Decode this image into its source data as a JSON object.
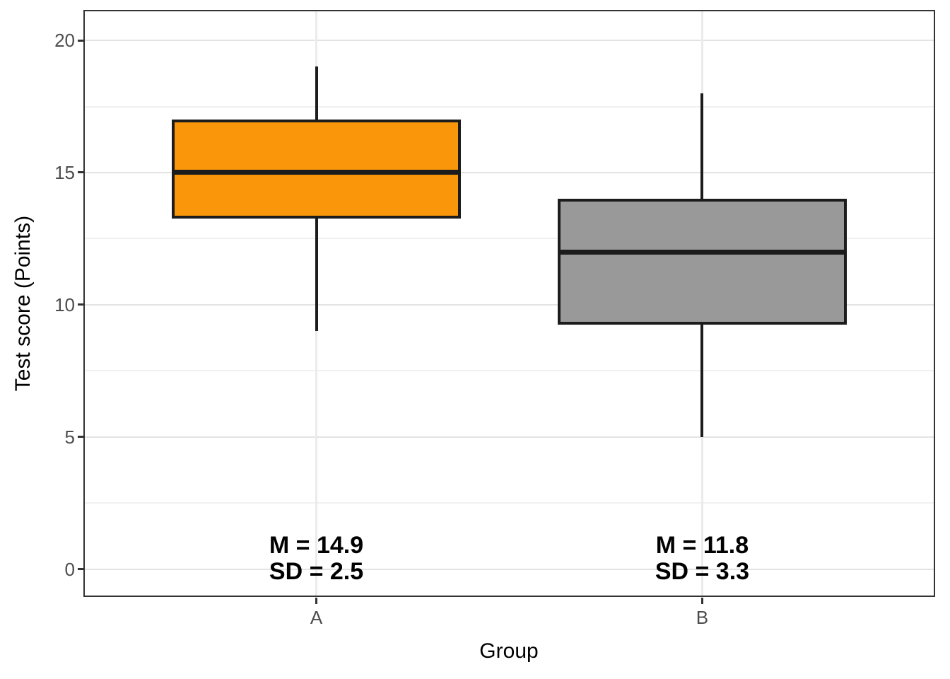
{
  "chart_data": {
    "type": "boxplot",
    "xlabel": "Group",
    "ylabel": "Test score (Points)",
    "categories": [
      "A",
      "B"
    ],
    "y_ticks": [
      0,
      5,
      10,
      15,
      20
    ],
    "y_minor_ticks": [
      2.5,
      7.5,
      12.5,
      17.5
    ],
    "ylim": [
      -1.0,
      21.1
    ],
    "xlim": [
      0.4,
      2.6
    ],
    "box_width": 0.75,
    "grid": true,
    "legend": "none",
    "series": [
      {
        "group": "A",
        "x": 1,
        "min": 9,
        "q1": 13.25,
        "median": 15,
        "q3": 17,
        "max": 19,
        "mean": 14.9,
        "sd": 2.5,
        "fill": "#fa960a",
        "annotation_lines": [
          "M = 14.9",
          "SD = 2.5"
        ]
      },
      {
        "group": "B",
        "x": 2,
        "min": 5,
        "q1": 9.25,
        "median": 12,
        "q3": 14,
        "max": 18,
        "mean": 11.8,
        "sd": 3.3,
        "fill": "#999999",
        "annotation_lines": [
          "M = 11.8",
          "SD = 3.3"
        ]
      }
    ],
    "annotation_y": 0.4,
    "colors": {
      "box_stroke": "#1c1c1c",
      "panel_border": "#333333",
      "grid_major": "#e3e3e3",
      "grid_minor": "#f0f0f0",
      "grid_vertical": "#ebebeb",
      "tick_label": "#4d4d4d",
      "axis_title": "#000000",
      "annotation_text": "#000000",
      "background": "#ffffff"
    }
  }
}
